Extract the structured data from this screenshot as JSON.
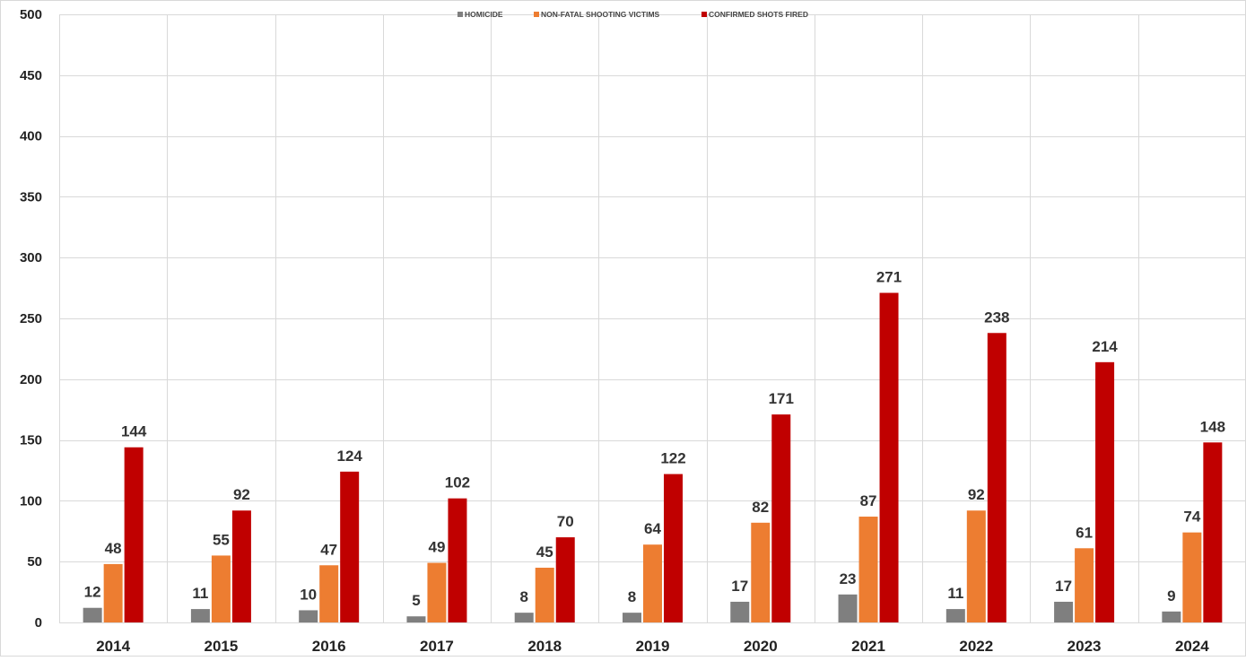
{
  "chart_data": {
    "type": "bar",
    "title": "",
    "xlabel": "",
    "ylabel": "",
    "ylim": [
      0,
      500
    ],
    "yticks": [
      0,
      50,
      100,
      150,
      200,
      250,
      300,
      350,
      400,
      450,
      500
    ],
    "grid": true,
    "legend_position": "top-center",
    "categories": [
      "2014",
      "2015",
      "2016",
      "2017",
      "2018",
      "2019",
      "2020",
      "2021",
      "2022",
      "2023",
      "2024"
    ],
    "series": [
      {
        "name": "HOMICIDE",
        "color": "#7f7f7f",
        "values": [
          12,
          11,
          10,
          5,
          8,
          8,
          17,
          23,
          11,
          17,
          9
        ]
      },
      {
        "name": "NON-FATAL SHOOTING VICTIMS",
        "color": "#ed7d31",
        "values": [
          48,
          55,
          47,
          49,
          45,
          64,
          82,
          87,
          92,
          61,
          74
        ]
      },
      {
        "name": "CONFIRMED SHOTS FIRED",
        "color": "#c00000",
        "values": [
          144,
          92,
          124,
          102,
          70,
          122,
          171,
          271,
          238,
          214,
          148
        ]
      }
    ]
  }
}
